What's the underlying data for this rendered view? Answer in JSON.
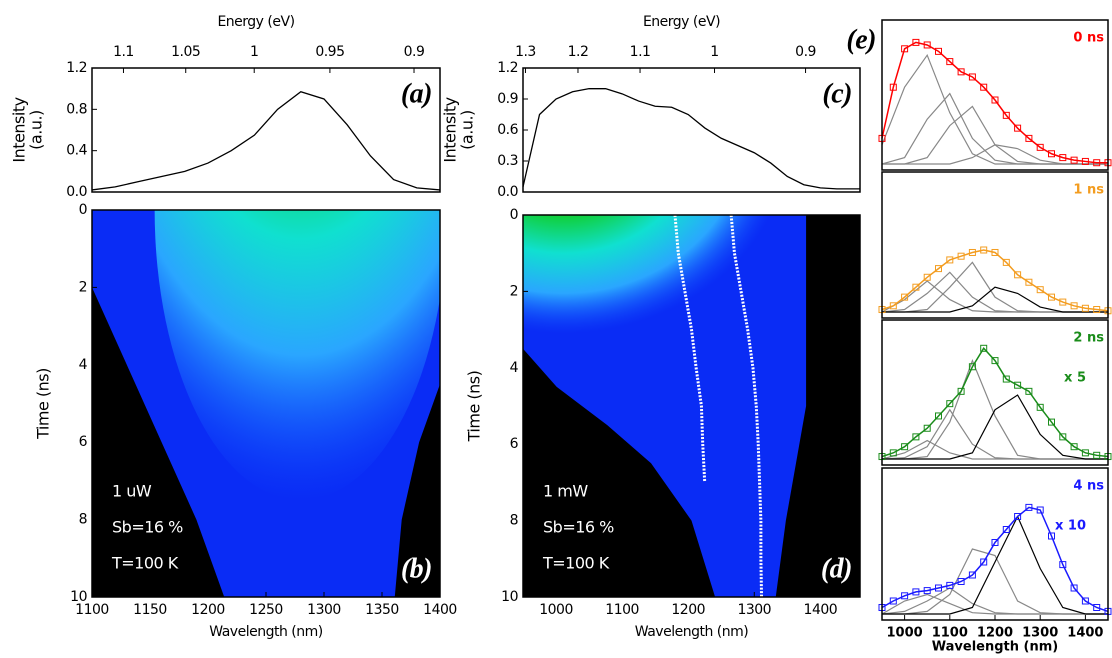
{
  "chart_data": [
    {
      "type": "line",
      "panel_label": "(a)",
      "x2label": "Energy (eV)",
      "x2ticks": [
        1.1,
        1.05,
        1,
        0.95,
        0.9
      ],
      "ylabel": "Intensity",
      "ylabel_unit": "(a.u.)",
      "color": "#000000",
      "xlim": [
        1100,
        1400
      ],
      "ylim": [
        0,
        1.2
      ],
      "yticks": [
        {
          "value": 0,
          "label": "0.0"
        },
        {
          "value": 0.4,
          "label": "0.4"
        },
        {
          "value": 0.8,
          "label": "0.8"
        },
        {
          "value": 1.2,
          "label": "1.2"
        }
      ],
      "x": [
        1100,
        1120,
        1140,
        1160,
        1180,
        1200,
        1220,
        1240,
        1260,
        1280,
        1300,
        1320,
        1340,
        1360,
        1380,
        1400
      ],
      "values": [
        0.02,
        0.05,
        0.1,
        0.15,
        0.2,
        0.28,
        0.4,
        0.55,
        0.8,
        0.97,
        0.9,
        0.65,
        0.35,
        0.12,
        0.04,
        0.02
      ]
    },
    {
      "type": "contour",
      "panel_label": "(b)",
      "xlabel": "Wavelength (nm)",
      "ylabel": "Time (ns)",
      "xlim": [
        1100,
        1400
      ],
      "xticks": [
        1100,
        1150,
        1200,
        1250,
        1300,
        1350,
        1400
      ],
      "ylim": [
        10,
        0
      ],
      "yticks": [
        0,
        2,
        4,
        6,
        8,
        10
      ],
      "annotations": [
        "1 uW",
        "Sb=16 %",
        "T=100 K"
      ],
      "series": []
    },
    {
      "type": "line",
      "panel_label": "(c)",
      "x2label": "Energy (eV)",
      "x2ticks": [
        1.3,
        1.2,
        1.1,
        1,
        0.9
      ],
      "ylabel": "Intensity",
      "ylabel_unit": "(a.u.)",
      "color": "#000000",
      "xlim": [
        950,
        1460
      ],
      "ylim": [
        0,
        1.2
      ],
      "yticks": [
        {
          "value": 0,
          "label": "0.0"
        },
        {
          "value": 0.3,
          "label": "0.3"
        },
        {
          "value": 0.6,
          "label": "0.6"
        },
        {
          "value": 0.9,
          "label": "0.9"
        },
        {
          "value": 1.2,
          "label": "1.2"
        }
      ],
      "x": [
        950,
        975,
        1000,
        1025,
        1050,
        1075,
        1100,
        1125,
        1150,
        1175,
        1200,
        1225,
        1250,
        1275,
        1300,
        1325,
        1350,
        1375,
        1400,
        1425,
        1460
      ],
      "values": [
        0.05,
        0.75,
        0.9,
        0.97,
        1.0,
        1.0,
        0.95,
        0.88,
        0.83,
        0.82,
        0.75,
        0.62,
        0.52,
        0.45,
        0.38,
        0.28,
        0.15,
        0.07,
        0.04,
        0.03,
        0.03
      ]
    },
    {
      "type": "contour",
      "panel_label": "(d)",
      "xlabel": "Wavelength (nm)",
      "ylabel": "Time (ns)",
      "xlim": [
        950,
        1460
      ],
      "xticks": [
        1000,
        1100,
        1200,
        1300,
        1400
      ],
      "ylim": [
        10,
        0
      ],
      "yticks": [
        0,
        2,
        4,
        6,
        8,
        10
      ],
      "annotations": [
        "1 mW",
        "Sb=16 %",
        "T=100 K"
      ],
      "series": [
        {
          "color": "#ffffff",
          "x": [
            1180,
            1185,
            1195,
            1205,
            1212,
            1220,
            1222,
            1225
          ],
          "values": [
            0,
            1,
            2,
            3,
            4,
            5,
            6,
            7
          ]
        },
        {
          "color": "#ffffff",
          "x": [
            1265,
            1270,
            1280,
            1290,
            1298,
            1303,
            1306,
            1308,
            1310,
            1310,
            1311
          ],
          "values": [
            0,
            1,
            2,
            3,
            4,
            5,
            6,
            7,
            8,
            9,
            10
          ]
        }
      ]
    },
    {
      "type": "spectra",
      "panel_label": "(e)",
      "xlabel": "Wavelength (nm)",
      "xlim": [
        950,
        1450
      ],
      "xticks": [
        1000,
        1100,
        1200,
        1300,
        1400
      ],
      "ylim": [
        0,
        1
      ],
      "x": [
        950,
        975,
        1000,
        1025,
        1050,
        1075,
        1100,
        1125,
        1150,
        1175,
        1200,
        1225,
        1250,
        1275,
        1300,
        1325,
        1350,
        1375,
        1400,
        1425,
        1450
      ],
      "component_x": [
        950,
        1000,
        1050,
        1100,
        1150,
        1200,
        1250,
        1300,
        1350,
        1400,
        1450
      ],
      "panels": [
        {
          "label": "0 ns",
          "color": "#ff0000",
          "values": [
            0.2,
            0.6,
            0.9,
            0.95,
            0.93,
            0.88,
            0.8,
            0.72,
            0.68,
            0.6,
            0.5,
            0.38,
            0.28,
            0.2,
            0.13,
            0.08,
            0.05,
            0.03,
            0.02,
            0.01,
            0.01
          ],
          "components": [
            {
              "color": "#888888",
              "values": [
                0.15,
                0.6,
                0.85,
                0.4,
                0.08,
                0,
                0,
                0,
                0,
                0,
                0
              ]
            },
            {
              "color": "#888888",
              "values": [
                0,
                0.05,
                0.35,
                0.55,
                0.2,
                0.03,
                0,
                0,
                0,
                0,
                0
              ]
            },
            {
              "color": "#888888",
              "values": [
                0,
                0,
                0.05,
                0.3,
                0.45,
                0.15,
                0.02,
                0,
                0,
                0,
                0
              ]
            },
            {
              "color": "#888888",
              "values": [
                0,
                0,
                0,
                0,
                0.05,
                0.15,
                0.12,
                0.03,
                0,
                0,
                0
              ]
            }
          ]
        },
        {
          "label": "1 ns",
          "color": "#f39c1f",
          "values": [
            0.02,
            0.05,
            0.12,
            0.2,
            0.28,
            0.35,
            0.42,
            0.45,
            0.48,
            0.5,
            0.48,
            0.4,
            0.3,
            0.24,
            0.18,
            0.12,
            0.08,
            0.05,
            0.03,
            0.02,
            0.01
          ],
          "components": [
            {
              "color": "#888888",
              "values": [
                0,
                0.1,
                0.25,
                0.1,
                0.01,
                0,
                0,
                0,
                0,
                0,
                0
              ]
            },
            {
              "color": "#888888",
              "values": [
                0,
                0.02,
                0.15,
                0.32,
                0.12,
                0.01,
                0,
                0,
                0,
                0,
                0
              ]
            },
            {
              "color": "#888888",
              "values": [
                0,
                0,
                0.02,
                0.2,
                0.4,
                0.12,
                0.01,
                0,
                0,
                0,
                0
              ]
            },
            {
              "color": "#000000",
              "values": [
                0,
                0,
                0,
                0,
                0.05,
                0.2,
                0.15,
                0.04,
                0,
                0,
                0
              ]
            }
          ]
        },
        {
          "label": "2 ns",
          "note": "x 5",
          "color": "#1a8c1a",
          "values": [
            0.02,
            0.05,
            0.1,
            0.18,
            0.25,
            0.35,
            0.45,
            0.55,
            0.75,
            0.9,
            0.8,
            0.65,
            0.6,
            0.55,
            0.42,
            0.3,
            0.18,
            0.1,
            0.05,
            0.03,
            0.02
          ],
          "components": [
            {
              "color": "#888888",
              "values": [
                0,
                0.05,
                0.15,
                0.05,
                0,
                0,
                0,
                0,
                0,
                0,
                0
              ]
            },
            {
              "color": "#888888",
              "values": [
                0,
                0.01,
                0.1,
                0.4,
                0.12,
                0.01,
                0,
                0,
                0,
                0,
                0
              ]
            },
            {
              "color": "#888888",
              "values": [
                0,
                0,
                0.02,
                0.3,
                0.8,
                0.35,
                0.03,
                0,
                0,
                0,
                0
              ]
            },
            {
              "color": "#000000",
              "values": [
                0,
                0,
                0,
                0,
                0.05,
                0.4,
                0.52,
                0.2,
                0.03,
                0,
                0
              ]
            }
          ]
        },
        {
          "label": "4 ns",
          "note": "x 10",
          "color": "#1a1aff",
          "values": [
            0.05,
            0.1,
            0.14,
            0.17,
            0.18,
            0.2,
            0.22,
            0.25,
            0.3,
            0.4,
            0.55,
            0.65,
            0.75,
            0.82,
            0.8,
            0.6,
            0.38,
            0.2,
            0.1,
            0.05,
            0.02
          ],
          "components": [
            {
              "color": "#888888",
              "values": [
                0,
                0.1,
                0.15,
                0.08,
                0.01,
                0,
                0,
                0,
                0,
                0,
                0
              ]
            },
            {
              "color": "#888888",
              "values": [
                0,
                0.02,
                0.1,
                0.2,
                0.08,
                0.01,
                0,
                0,
                0,
                0,
                0
              ]
            },
            {
              "color": "#888888",
              "values": [
                0,
                0,
                0.02,
                0.15,
                0.5,
                0.45,
                0.1,
                0.01,
                0,
                0,
                0
              ]
            },
            {
              "color": "#000000",
              "values": [
                0,
                0,
                0,
                0,
                0.05,
                0.4,
                0.75,
                0.35,
                0.05,
                0,
                0
              ]
            }
          ]
        }
      ]
    }
  ]
}
